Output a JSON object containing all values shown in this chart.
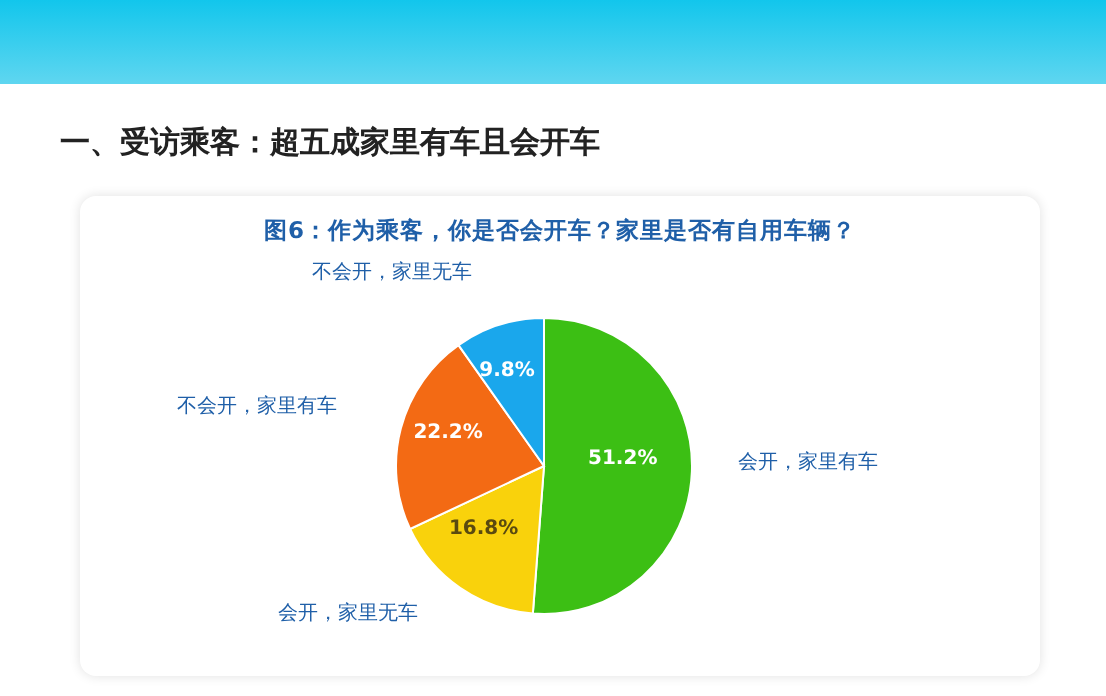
{
  "chart_data": {
    "type": "pie",
    "title": "一、受访乘客：超五成家里有车且会开车",
    "subtitle": "图6：作为乘客，你是否会开车？家里是否有自用车辆？",
    "categories": [
      "会开，家里有车",
      "会开，家里无车",
      "不会开，家里有车",
      "不会开，家里无车"
    ],
    "values": [
      51.2,
      16.8,
      22.2,
      9.8
    ],
    "colors": [
      "#3cbf14",
      "#f9d20c",
      "#f36a14",
      "#1aa7ec"
    ],
    "value_labels": [
      "51.2%",
      "16.8%",
      "22.2%",
      "9.8%"
    ]
  }
}
